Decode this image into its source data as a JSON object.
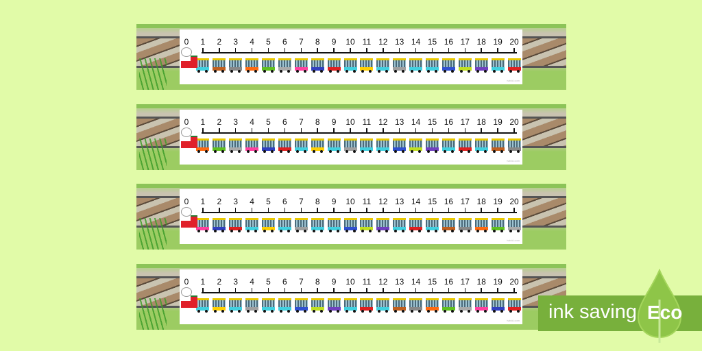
{
  "number_line": {
    "numbers": [
      "0",
      "1",
      "2",
      "3",
      "4",
      "5",
      "6",
      "7",
      "8",
      "9",
      "10",
      "11",
      "12",
      "13",
      "14",
      "15",
      "16",
      "17",
      "18",
      "19",
      "20"
    ],
    "strip_count": 4,
    "carriage_colors": [
      "#40d0e0",
      "#c06020",
      "#888888",
      "#ff6a10",
      "#60c020",
      "#aaaaaa",
      "#ff40a0",
      "#3040c0",
      "#e02020",
      "#40d0e0",
      "#ffd000",
      "#40d0e0",
      "#a0a0a0",
      "#40d0e0",
      "#40d0e0",
      "#3050d0",
      "#c0e020",
      "#7040c0",
      "#40d0e0",
      "#e02020"
    ],
    "credit": "twinkl.com"
  },
  "badge": {
    "text": "ink saving",
    "eco": "Eco",
    "color": "#78b03c"
  }
}
